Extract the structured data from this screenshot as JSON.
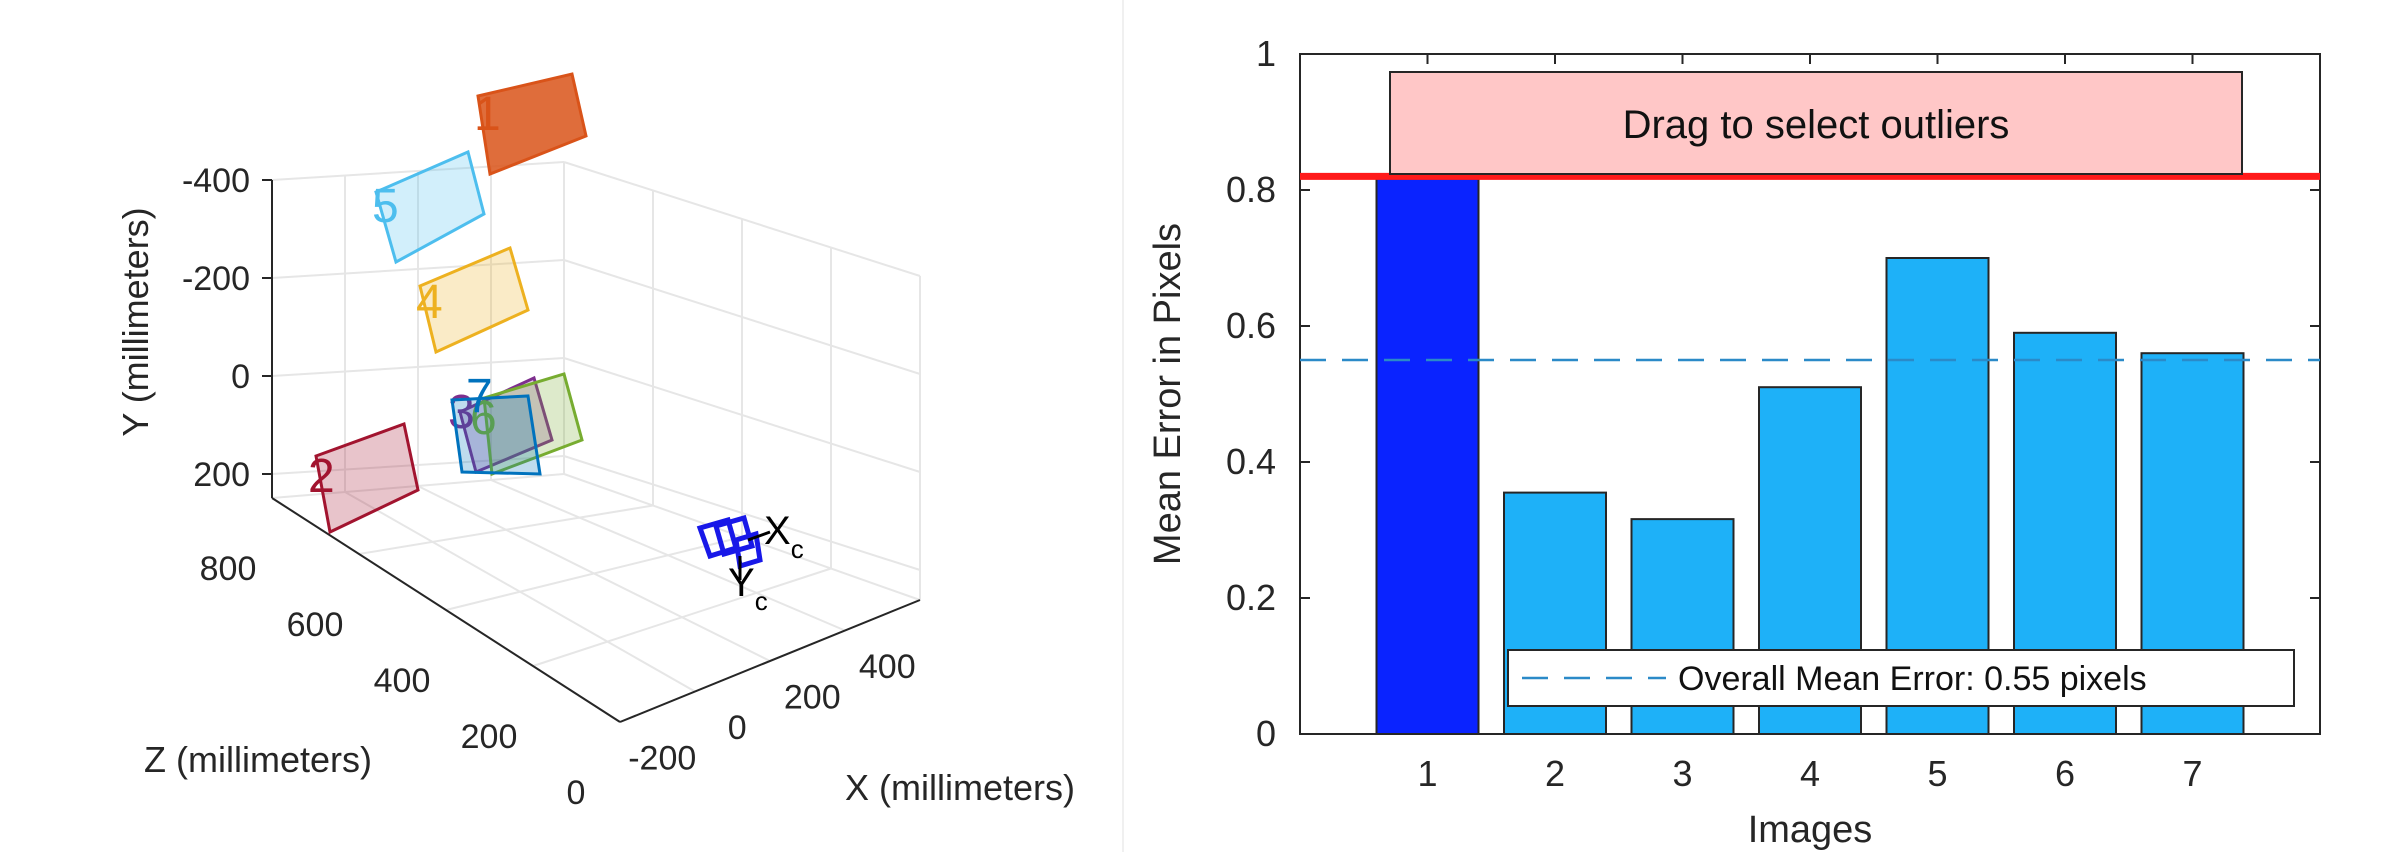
{
  "chart_data": [
    {
      "type": "scatter",
      "subtype": "3d-extrinsics",
      "xlabel": "X (millimeters)",
      "ylabel": "Y (millimeters)",
      "zlabel": "Z (millimeters)",
      "x_ticks": [
        "-200",
        "0",
        "200",
        "400"
      ],
      "y_ticks": [
        "-400",
        "-200",
        "0",
        "200"
      ],
      "z_ticks": [
        "0",
        "200",
        "400",
        "600",
        "800"
      ],
      "grid": true,
      "camera_axes": {
        "x": "X",
        "x_sub": "c",
        "y": "Y",
        "y_sub": "c"
      },
      "patterns": [
        {
          "id": "1",
          "color": "#D95319"
        },
        {
          "id": "2",
          "color": "#A2142F"
        },
        {
          "id": "3",
          "color": "#7E2F8E"
        },
        {
          "id": "4",
          "color": "#EDB120"
        },
        {
          "id": "5",
          "color": "#4DBEEE"
        },
        {
          "id": "6",
          "color": "#77AC30"
        },
        {
          "id": "7",
          "color": "#0072BD"
        }
      ]
    },
    {
      "type": "bar",
      "categories": [
        "1",
        "2",
        "3",
        "4",
        "5",
        "6",
        "7"
      ],
      "values": [
        0.82,
        0.355,
        0.316,
        0.51,
        0.7,
        0.59,
        0.56
      ],
      "xlabel": "Images",
      "ylabel": "Mean Error in Pixels",
      "ylim": [
        0,
        1
      ],
      "y_ticks": [
        "0",
        "0.2",
        "0.4",
        "0.6",
        "0.8",
        "1"
      ],
      "bar_color": "#1EB1F8",
      "selected_bar_color": "#0A23FF",
      "selected": [
        "1"
      ],
      "threshold": 0.82,
      "threshold_color": "#FF1A1A",
      "mean_error": 0.55,
      "mean_line_color": "#2B8AC8",
      "legend": {
        "label": "Overall Mean Error: 0.55 pixels",
        "placement": "bottom-right"
      },
      "selection_label": "Drag to select outliers"
    }
  ]
}
